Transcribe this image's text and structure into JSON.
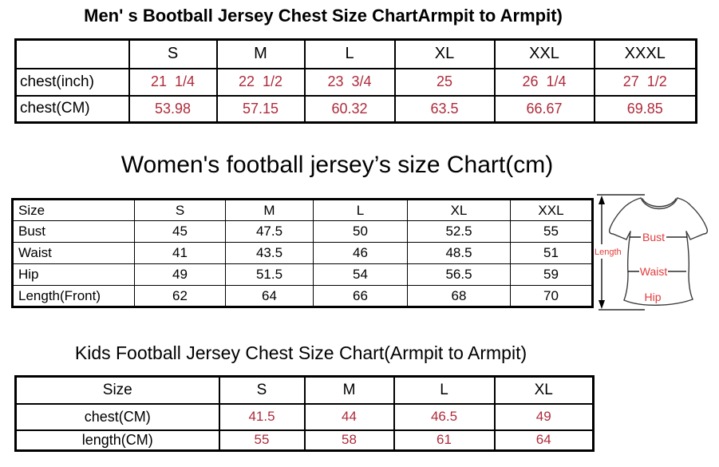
{
  "colors": {
    "background": "#ffffff",
    "text": "#000000",
    "border": "#000000",
    "table_value_red": "#ae2b3b",
    "diagram_label_red": "#e23b3b"
  },
  "men_table": {
    "title": "Men' s Bootball Jersey Chest Size ChartArmpit to Armpit)",
    "columns": [
      "",
      "S",
      "M",
      "L",
      "XL",
      "XXL",
      "XXXL"
    ],
    "rows": [
      {
        "label": "chest(inch)",
        "values": [
          "21  1/4",
          "22  1/2",
          "23  3/4",
          "25",
          "26  1/4",
          "27  1/2"
        ]
      },
      {
        "label": "chest(CM)",
        "values": [
          "53.98",
          "57.15",
          "60.32",
          "63.5",
          "66.67",
          "69.85"
        ]
      }
    ]
  },
  "women_table": {
    "title": "Women's football jersey’s size Chart(cm)",
    "columns": [
      "Size",
      "S",
      "M",
      "L",
      "XL",
      "XXL"
    ],
    "rows": [
      {
        "label": "Bust",
        "values": [
          "45",
          "47.5",
          "50",
          "52.5",
          "55"
        ]
      },
      {
        "label": "Waist",
        "values": [
          "41",
          "43.5",
          "46",
          "48.5",
          "51"
        ]
      },
      {
        "label": "Hip",
        "values": [
          "49",
          "51.5",
          "54",
          "56.5",
          "59"
        ]
      },
      {
        "label": "Length(Front)",
        "values": [
          "62",
          "64",
          "66",
          "68",
          "70"
        ]
      }
    ]
  },
  "kids_table": {
    "title": "Kids Football Jersey Chest Size Chart(Armpit to Armpit)",
    "columns": [
      "Size",
      "S",
      "M",
      "L",
      "XL"
    ],
    "rows": [
      {
        "label": "chest(CM)",
        "values": [
          "41.5",
          "44",
          "46.5",
          "49"
        ]
      },
      {
        "label": "length(CM)",
        "values": [
          "55",
          "58",
          "61",
          "64"
        ]
      }
    ]
  },
  "diagram": {
    "length_label": "Length",
    "bust_label": "Bust",
    "waist_label": "Waist",
    "hip_label": "Hip"
  }
}
